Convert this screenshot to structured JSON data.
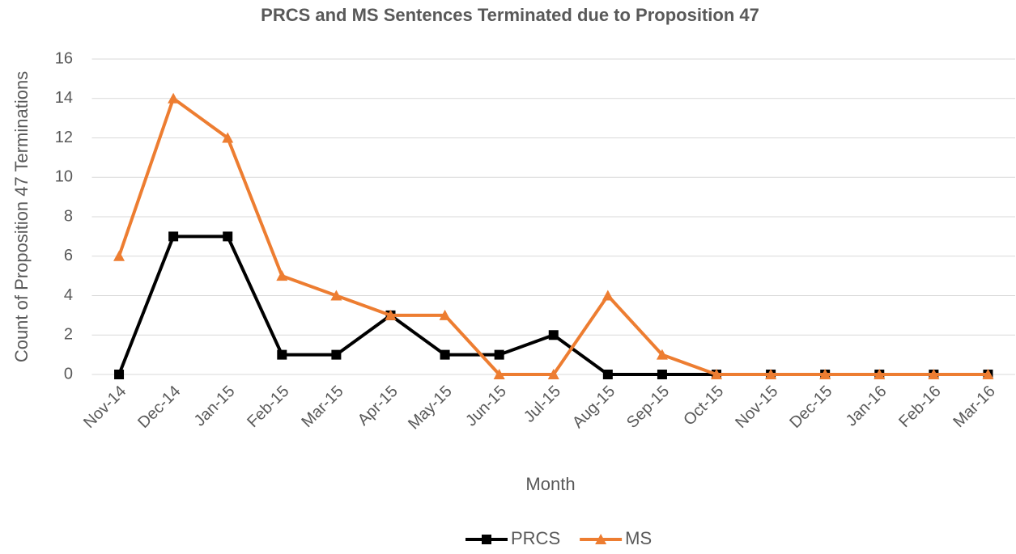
{
  "chart_data": {
    "type": "line",
    "title": "PRCS and MS Sentences Terminated due to Proposition 47",
    "x_label": "Month",
    "y_label": "Count of Proposition 47 Terminations",
    "categories": [
      "Nov-14",
      "Dec-14",
      "Jan-15",
      "Feb-15",
      "Mar-15",
      "Apr-15",
      "May-15",
      "Jun-15",
      "Jul-15",
      "Aug-15",
      "Sep-15",
      "Oct-15",
      "Nov-15",
      "Dec-15",
      "Jan-16",
      "Feb-16",
      "Mar-16"
    ],
    "series": [
      {
        "name": "PRCS",
        "color": "#000000",
        "marker": "square",
        "values": [
          0,
          7,
          7,
          1,
          1,
          3,
          1,
          1,
          2,
          0,
          0,
          0,
          0,
          0,
          0,
          0,
          0
        ]
      },
      {
        "name": "MS",
        "color": "#ed7d31",
        "marker": "triangle",
        "values": [
          6,
          14,
          12,
          5,
          4,
          3,
          3,
          0,
          0,
          4,
          1,
          0,
          0,
          0,
          0,
          0,
          0
        ]
      }
    ],
    "ylim": [
      0,
      16
    ],
    "yticks": [
      0,
      2,
      4,
      6,
      8,
      10,
      12,
      14,
      16
    ],
    "grid": true,
    "legend": "bottom"
  }
}
